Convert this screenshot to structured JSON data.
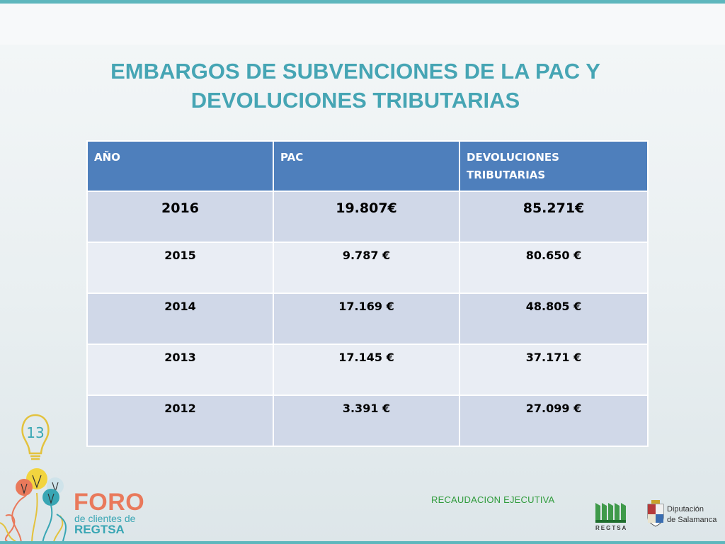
{
  "slide": {
    "title_line1": "EMBARGOS DE SUBVENCIONES DE LA PAC Y",
    "title_line2": "DEVOLUCIONES TRIBUTARIAS",
    "accent_color": "#46a5b4",
    "header_color": "#4e7fbc"
  },
  "table": {
    "headers": [
      "AÑO",
      "PAC",
      "DEVOLUCIONES TRIBUTARIAS"
    ],
    "rows": [
      [
        "2016",
        "19.807€",
        "85.271€"
      ],
      [
        "2015",
        "9.787 €",
        "80.650 €"
      ],
      [
        "2014",
        "17.169 €",
        "48.805 €"
      ],
      [
        "2013",
        "17.145 €",
        "37.171 €"
      ],
      [
        "2012",
        "3.391 €",
        "27.099 €"
      ]
    ]
  },
  "footer": {
    "text": "RECAUDACION EJECUTIVA",
    "foro_number": "13",
    "foro_title": "FORO",
    "foro_sub": "de clientes de",
    "foro_sub2": "REGTSA",
    "regtsa_label": "REGTSA",
    "diputacion_line1": "Diputación",
    "diputacion_line2": "de Salamanca"
  }
}
